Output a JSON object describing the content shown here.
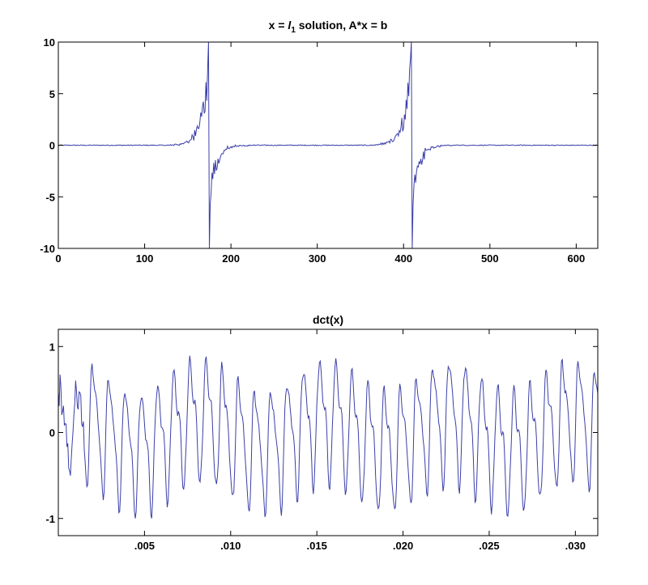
{
  "figure": {
    "background": "#ffffff",
    "line_color": "#3b3fa8"
  },
  "chart_data": [
    {
      "type": "line",
      "title_main": "x = ",
      "title_italic": "l",
      "title_sub": "1",
      "title_rest": " solution, A*x = b",
      "xlim": [
        0,
        625
      ],
      "ylim": [
        -10,
        10
      ],
      "xticks": [
        0,
        100,
        200,
        300,
        400,
        500,
        600
      ],
      "xtick_labels": [
        "0",
        "100",
        "200",
        "300",
        "400",
        "500",
        "600"
      ],
      "yticks": [
        10,
        5,
        0,
        -5,
        -10
      ],
      "ytick_labels": [
        "10",
        "5",
        "0",
        "-5",
        "-10"
      ],
      "grid": false,
      "legend": "none",
      "features": {
        "n_points": 625,
        "spikes": [
          {
            "center": 174,
            "rise_start": 130,
            "peak_pos": 10,
            "peak_neg": -10,
            "decay_end": 230
          },
          {
            "center": 409,
            "rise_start": 365,
            "peak_pos": 10,
            "peak_neg": -10,
            "decay_end": 465
          }
        ],
        "baseline_noise": 0.08
      }
    },
    {
      "type": "line",
      "title": "dct(x)",
      "xlim": [
        0,
        0.0313
      ],
      "ylim": [
        -1.2,
        1.2
      ],
      "xticks": [
        0.005,
        0.01,
        0.015,
        0.02,
        0.025,
        0.03
      ],
      "xtick_labels": [
        ".005",
        ".010",
        ".015",
        ".020",
        ".025",
        ".030"
      ],
      "yticks": [
        1,
        0,
        -1
      ],
      "ytick_labels": [
        "1",
        "0",
        "-1"
      ],
      "grid": false,
      "legend": "none",
      "features": {
        "n_points": 625,
        "dominant_period": 0.00094,
        "amplitude_max": 1.0,
        "amplitude_min": -1.0
      }
    }
  ]
}
